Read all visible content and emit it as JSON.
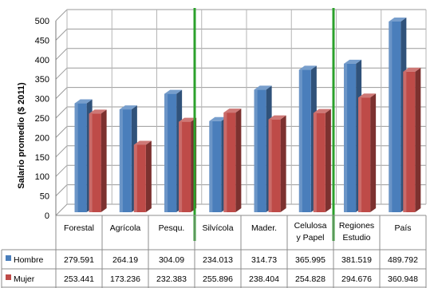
{
  "chart_data": {
    "type": "bar",
    "ylabel": "Salario promedio ($ 2011)",
    "ylim": [
      0,
      500
    ],
    "y_ticks": [
      0,
      50,
      100,
      150,
      200,
      250,
      300,
      350,
      400,
      450,
      500
    ],
    "grid": true,
    "legend": "table-left",
    "categories": [
      [
        "Forestal"
      ],
      [
        "Agrícola"
      ],
      [
        "Pesqu."
      ],
      [
        "Silvícola"
      ],
      [
        "Mader."
      ],
      [
        "Celulosa",
        "y Papel"
      ],
      [
        "Regiones",
        "Estudio"
      ],
      [
        "País"
      ]
    ],
    "series": [
      {
        "name": "Hombre",
        "color": "#4a7ebb",
        "values": [
          279.591,
          264.19,
          304.09,
          234.013,
          314.73,
          365.995,
          381.519,
          489.792
        ],
        "labels": [
          "279.591",
          "264.19",
          "304.09",
          "234.013",
          "314.73",
          "365.995",
          "381.519",
          "489.792"
        ]
      },
      {
        "name": "Mujer",
        "color": "#be4b48",
        "values": [
          253.441,
          173.236,
          232.383,
          255.896,
          238.404,
          254.828,
          294.676,
          360.948
        ],
        "labels": [
          "253.441",
          "173.236",
          "232.383",
          "255.896",
          "238.404",
          "254.828",
          "294.676",
          "360.948"
        ]
      }
    ],
    "separator_color": "#2ca12c"
  }
}
